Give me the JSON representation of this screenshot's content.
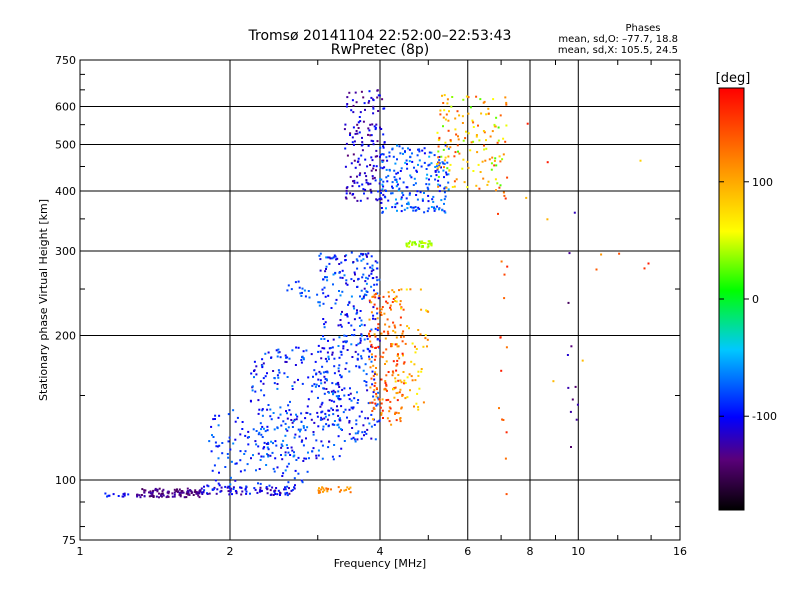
{
  "chart_data": {
    "type": "scatter",
    "title": "Tromsø 20141104 22:52:00–22:53:43",
    "subtitle": "RwPretec (8p)",
    "xlabel": "Frequency [MHz]",
    "ylabel": "Stationary phase Virtual Height [km]",
    "xscale": "log",
    "yscale": "log",
    "xlim": [
      1,
      16
    ],
    "ylim": [
      75,
      750
    ],
    "xticks": [
      1,
      2,
      4,
      6,
      8,
      10,
      16
    ],
    "yticks": [
      75,
      100,
      200,
      300,
      400,
      500,
      600,
      750
    ],
    "grid": true,
    "info": {
      "heading": "Phases",
      "line_o": "mean, sd,O: –77.7, 18.8",
      "line_x": "mean, sd,X: 105.5, 24.5"
    },
    "colorbar": {
      "label": "[deg]",
      "min": -180,
      "max": 180,
      "ticks": [
        100,
        0,
        -100
      ]
    },
    "clusters": [
      {
        "x": [
          1.1,
          1.25
        ],
        "y": [
          92,
          94
        ],
        "phase": [
          -120,
          -80
        ],
        "count": 12
      },
      {
        "x": [
          1.3,
          1.75
        ],
        "y": [
          92,
          96
        ],
        "phase": [
          -150,
          -120
        ],
        "count": 110
      },
      {
        "x": [
          1.75,
          2.7
        ],
        "y": [
          93,
          97
        ],
        "phase": [
          -135,
          -80
        ],
        "count": 90
      },
      {
        "x": [
          1.8,
          2.9
        ],
        "y": [
          97,
          140
        ],
        "phase": [
          -110,
          -60
        ],
        "count": 130
      },
      {
        "x": [
          2.2,
          3.4
        ],
        "y": [
          110,
          190
        ],
        "phase": [
          -120,
          -60
        ],
        "count": 240
      },
      {
        "x": [
          3.0,
          4.0
        ],
        "y": [
          120,
          300
        ],
        "phase": [
          -120,
          -60
        ],
        "count": 360
      },
      {
        "x": [
          2.6,
          3.0
        ],
        "y": [
          240,
          260
        ],
        "phase": [
          -90,
          -60
        ],
        "count": 15
      },
      {
        "x": [
          3.8,
          4.5
        ],
        "y": [
          130,
          250
        ],
        "phase": [
          90,
          170
        ],
        "count": 180
      },
      {
        "x": [
          4.2,
          5.0
        ],
        "y": [
          140,
          250
        ],
        "phase": [
          60,
          130
        ],
        "count": 60
      },
      {
        "x": [
          3.4,
          4.1
        ],
        "y": [
          380,
          650
        ],
        "phase": [
          -140,
          -90
        ],
        "count": 160
      },
      {
        "x": [
          4.0,
          5.5
        ],
        "y": [
          360,
          500
        ],
        "phase": [
          -110,
          -50
        ],
        "count": 210
      },
      {
        "x": [
          5.2,
          7.2
        ],
        "y": [
          400,
          640
        ],
        "phase": [
          20,
          150
        ],
        "count": 150
      },
      {
        "x": [
          4.5,
          5.1
        ],
        "y": [
          305,
          315
        ],
        "phase": [
          30,
          50
        ],
        "count": 40
      },
      {
        "x": [
          3.0,
          3.5
        ],
        "y": [
          94,
          97
        ],
        "phase": [
          100,
          130
        ],
        "count": 25
      },
      {
        "x": [
          6.9,
          7.2
        ],
        "y": [
          86,
          400
        ],
        "phase": [
          120,
          170
        ],
        "count": 18
      },
      {
        "x": [
          9.5,
          10.0
        ],
        "y": [
          90,
          420
        ],
        "phase": [
          -160,
          -110
        ],
        "count": 12
      },
      {
        "x": [
          7.5,
          14.0
        ],
        "y": [
          150,
          600
        ],
        "phase": [
          80,
          170
        ],
        "count": 12
      }
    ]
  }
}
